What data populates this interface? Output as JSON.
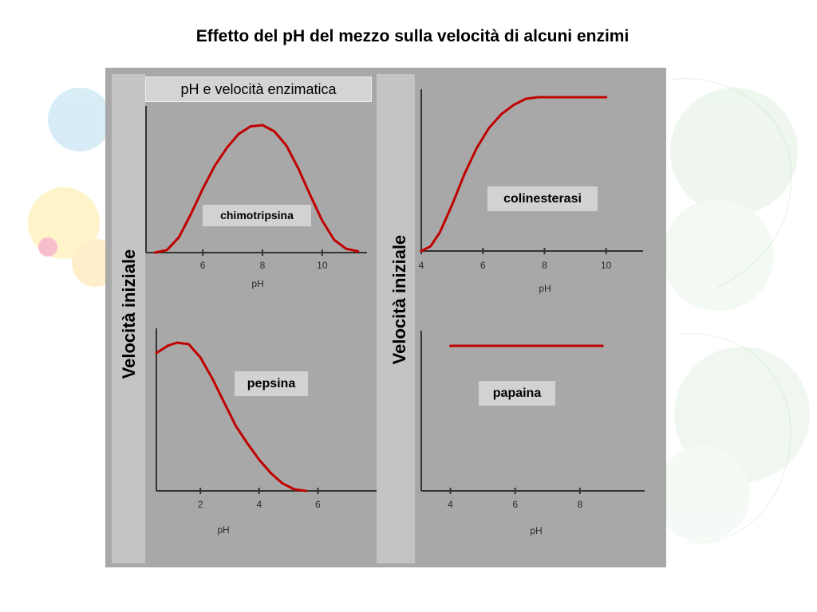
{
  "slide": {
    "title": "Effetto del pH del mezzo sulla velocità di alcuni enzimi",
    "heading": "pH e velocità enzimatica",
    "y_label_left": "Velocità iniziale",
    "y_label_right": "Velocità iniziale"
  },
  "colors": {
    "curve": "#c00000",
    "panel": "#a8a8a8",
    "axis": "#333333"
  },
  "chart_data": [
    {
      "type": "line",
      "label": "chimotripsina",
      "xlabel": "pH",
      "ylabel": "",
      "xticks": [
        6,
        8,
        10
      ],
      "xlim": [
        4.1,
        11.5
      ],
      "ylim": [
        0,
        1
      ],
      "series": [
        {
          "name": "chimotripsina",
          "x": [
            4.4,
            4.8,
            5.2,
            5.6,
            6.0,
            6.4,
            6.8,
            7.2,
            7.6,
            8.0,
            8.4,
            8.8,
            9.2,
            9.6,
            10.0,
            10.4,
            10.8,
            11.2
          ],
          "y": [
            0.0,
            0.02,
            0.12,
            0.3,
            0.5,
            0.68,
            0.82,
            0.93,
            0.99,
            1.0,
            0.95,
            0.84,
            0.66,
            0.45,
            0.25,
            0.1,
            0.03,
            0.01
          ]
        }
      ]
    },
    {
      "type": "line",
      "label": "colinesterasi",
      "xlabel": "pH",
      "ylabel": "",
      "xticks": [
        4,
        6,
        8,
        10
      ],
      "xlim": [
        4,
        11.2
      ],
      "ylim": [
        0,
        1
      ],
      "series": [
        {
          "name": "colinesterasi",
          "x": [
            4.0,
            4.3,
            4.6,
            5.0,
            5.4,
            5.8,
            6.2,
            6.6,
            7.0,
            7.4,
            7.8,
            8.2,
            8.6,
            9.0,
            9.4,
            10.0
          ],
          "y": [
            0.0,
            0.03,
            0.12,
            0.3,
            0.5,
            0.67,
            0.8,
            0.89,
            0.95,
            0.99,
            1.0,
            1.0,
            1.0,
            1.0,
            1.0,
            1.0
          ]
        }
      ]
    },
    {
      "type": "line",
      "label": "pepsina",
      "xlabel": "pH",
      "ylabel": "",
      "xticks": [
        2,
        4,
        6
      ],
      "xlim": [
        0.5,
        8.0
      ],
      "ylim": [
        0,
        1
      ],
      "series": [
        {
          "name": "pepsina",
          "x": [
            0.5,
            0.9,
            1.2,
            1.6,
            2.0,
            2.4,
            2.8,
            3.2,
            3.6,
            4.0,
            4.4,
            4.8,
            5.2,
            5.6
          ],
          "y": [
            0.93,
            0.98,
            1.0,
            0.99,
            0.9,
            0.76,
            0.6,
            0.44,
            0.32,
            0.21,
            0.12,
            0.05,
            0.01,
            0.0
          ]
        }
      ]
    },
    {
      "type": "line",
      "label": "papaina",
      "xlabel": "pH",
      "ylabel": "",
      "xticks": [
        4,
        6,
        8
      ],
      "xlim": [
        3.1,
        10.0
      ],
      "ylim": [
        0,
        1
      ],
      "series": [
        {
          "name": "papaina",
          "x": [
            4.0,
            8.7
          ],
          "y": [
            1.0,
            1.0
          ]
        }
      ]
    }
  ]
}
